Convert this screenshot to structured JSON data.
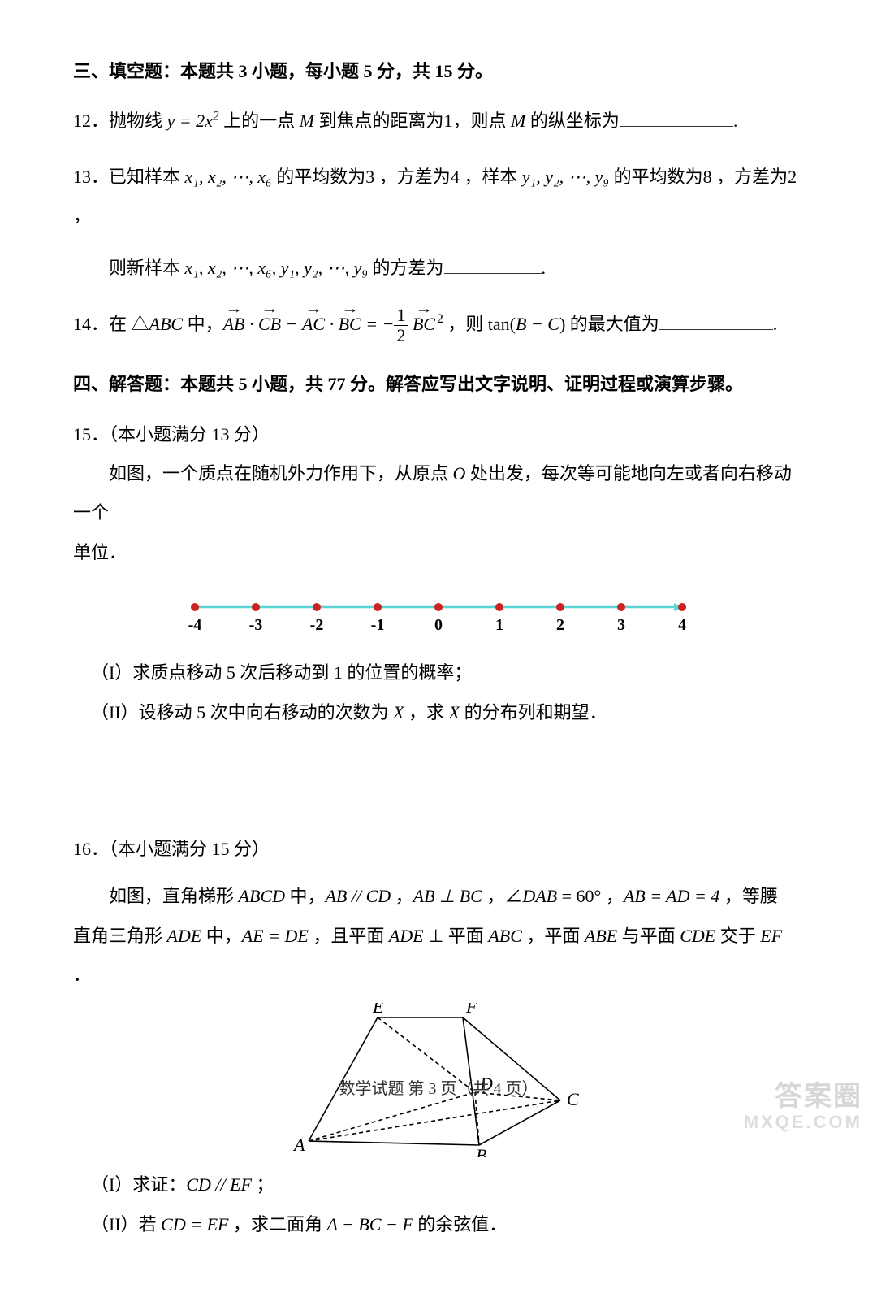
{
  "section3": {
    "header": "三、填空题：本题共 3 小题，每小题 5 分，共 15 分。"
  },
  "q12": {
    "num": "12．",
    "pre": "抛物线 ",
    "eq": "y = 2x",
    "sup": "2",
    "mid1": " 上的一点 ",
    "M": "M",
    "mid2": " 到焦点的距离为",
    "one": "1",
    "mid3": "，则点 ",
    "mid4": " 的纵坐标为",
    "period": "."
  },
  "q13": {
    "num": "13．",
    "l1a": "已知样本 ",
    "xs": "x₁, x₂, ⋯, x₆",
    "l1b": " 的平均数为",
    "v3": "3",
    "l1c": " ，方差为",
    "v4": "4",
    "l1d": " ，样本 ",
    "ys": "y₁, y₂, ⋯, y₉",
    "l1e": " 的平均数为",
    "v8": "8",
    "l1f": " ，方差为",
    "v2": "2",
    "l1g": " ，",
    "l2a": "则新样本 ",
    "all": "x₁, x₂, ⋯, x₆, y₁, y₂, ⋯, y₉",
    "l2b": " 的方差为",
    "period": "."
  },
  "q14": {
    "num": "14．",
    "pre": "在 △",
    "ABC": "ABC",
    "mid1": " 中，",
    "AB": "AB",
    "CB": "CB",
    "AC": "AC",
    "BC": "BC",
    "dot": " · ",
    "minus": " − ",
    "eq": " = −",
    "frac_num": "1",
    "frac_den": "2",
    "sq": "2",
    "comma": " ，则 ",
    "tan": "tan(",
    "BmC": "B − C",
    "close": ")",
    "tail": " 的最大值为",
    "period": "."
  },
  "section4": {
    "header": "四、解答题：本题共 5 小题，共 77 分。解答应写出文字说明、证明过程或演算步骤。"
  },
  "q15": {
    "num": "15．",
    "pts": "（本小题满分 13 分）",
    "body1": "如图，一个质点在随机外力作用下，从原点 ",
    "O": "O",
    "body2": " 处出发，每次等可能地向左或者向右移动一个",
    "body3": "单位．",
    "p1": "（I）求质点移动 5 次后移动到 1 的位置的概率；",
    "p2a": "（II）设移动 5 次中向右移动的次数为 ",
    "X": "X",
    "p2b": " ，求 ",
    "p2c": " 的分布列和期望．",
    "ticks": [
      "-4",
      "-3",
      "-2",
      "-1",
      "0",
      "1",
      "2",
      "3",
      "4"
    ],
    "line_color": "#5bd6d6",
    "dot_color": "#cc2222"
  },
  "q16": {
    "num": "16．",
    "pts": "（本小题满分 15 分）",
    "b1": "如图，直角梯形 ",
    "ABCD": "ABCD",
    "b2": " 中，",
    "ABparCD": "AB // CD",
    "b3": " ，",
    "ABperpBC": "AB ⊥ BC",
    "b4": " ，∠",
    "DAB": "DAB",
    "eq60": " = 60°",
    "b5": " ，",
    "ABeqAD": "AB = AD = 4",
    "b6": " ，等腰",
    "l2a": "直角三角形 ",
    "ADE": "ADE",
    "l2b": " 中，",
    "AEeqDE": "AE = DE",
    "l2c": " ，且平面 ",
    "l2d": " ⊥ 平面 ",
    "ABCpl": "ABC",
    "l2e": " ，平面 ",
    "ABE": "ABE",
    "l2f": " 与平面 ",
    "CDE": "CDE",
    "l2g": " 交于 ",
    "EF": "EF",
    "l2h": " ．",
    "p1a": "（I）求证：",
    "CDparEF": "CD // EF",
    "p1b": " ；",
    "p2a": "（II）若 ",
    "CDeqEF": "CD = EF",
    "p2b": " ，求二面角 ",
    "ABCF": "A − BC − F",
    "p2c": " 的余弦值．",
    "labels": {
      "A": "A",
      "B": "B",
      "C": "C",
      "D": "D",
      "E": "E",
      "F": "F"
    }
  },
  "footer": {
    "text": "数学试题 第 3 页（共 4 页）"
  },
  "watermark": {
    "l1": "答案圈",
    "l2": "MXQE.COM"
  }
}
